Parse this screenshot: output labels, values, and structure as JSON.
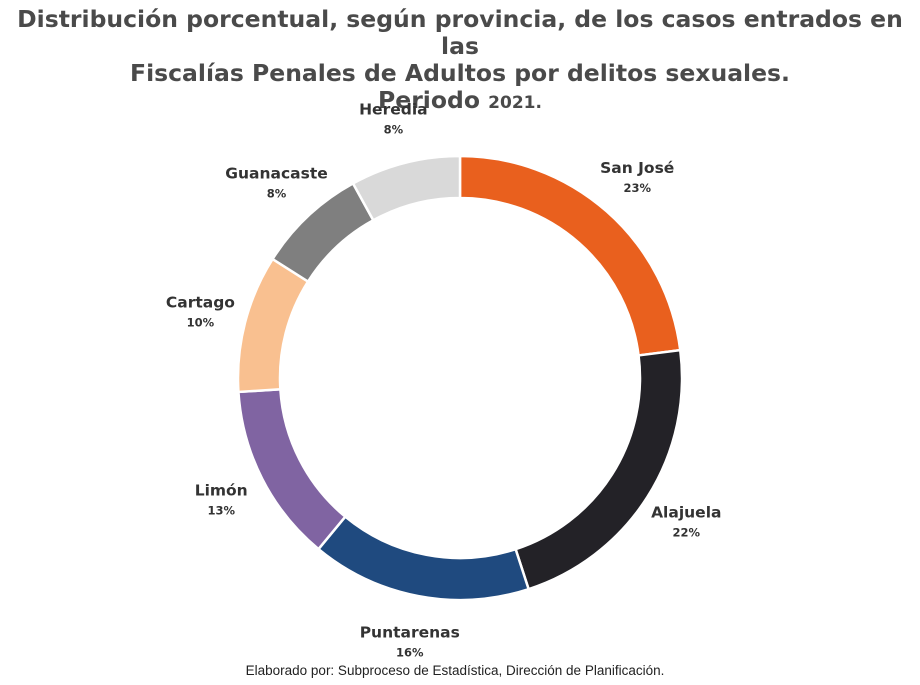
{
  "title": {
    "line1": "Distribución porcentual, según provincia, de los casos entrados en las",
    "line2": "Fiscalías Penales de Adultos por delitos sexuales.",
    "line3_word": "Periodo",
    "line3_year": "2021."
  },
  "footer": "Elaborado por: Subproceso de Estadística, Dirección de Planificación.",
  "chart_data": {
    "type": "pie",
    "subtype": "donut",
    "unit": "%",
    "start": "top, clockwise",
    "categories": [
      "San José",
      "Alajuela",
      "Puntarenas",
      "Limón",
      "Cartago",
      "Guanacaste",
      "Heredia"
    ],
    "values": [
      23,
      22,
      16,
      13,
      10,
      8,
      8
    ],
    "labels": [
      "23%",
      "22%",
      "16%",
      "13%",
      "10%",
      "8%",
      "8%"
    ],
    "colors": [
      "#E9601E",
      "#232227",
      "#1F4A7F",
      "#8064A2",
      "#F9C090",
      "#7F7F7F",
      "#D9D9D9"
    ]
  }
}
